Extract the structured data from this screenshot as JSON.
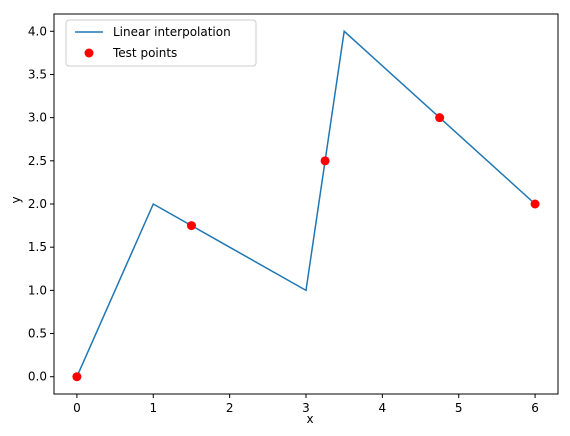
{
  "chart_data": {
    "type": "line",
    "title": "",
    "xlabel": "x",
    "ylabel": "y",
    "xlim": [
      -0.3,
      6.3
    ],
    "ylim": [
      -0.2,
      4.2
    ],
    "xticks": [
      0,
      1,
      2,
      3,
      4,
      5,
      6
    ],
    "yticks": [
      0.0,
      0.5,
      1.0,
      1.5,
      2.0,
      2.5,
      3.0,
      3.5,
      4.0
    ],
    "xtick_labels": [
      "0",
      "1",
      "2",
      "3",
      "4",
      "5",
      "6"
    ],
    "ytick_labels": [
      "0.0",
      "0.5",
      "1.0",
      "1.5",
      "2.0",
      "2.5",
      "3.0",
      "3.5",
      "4.0"
    ],
    "grid": false,
    "legend_position": "top-left",
    "series": [
      {
        "name": "Linear interpolation",
        "kind": "line",
        "color": "#1f77b4",
        "x": [
          0,
          1,
          2,
          3,
          3.5,
          6
        ],
        "y": [
          0,
          2,
          1.5,
          1,
          4,
          2
        ]
      },
      {
        "name": "Test points",
        "kind": "scatter",
        "color": "#ff0000",
        "x": [
          0,
          1.5,
          3.25,
          4.75,
          6
        ],
        "y": [
          0,
          1.75,
          2.5,
          3.0,
          2.0
        ]
      }
    ]
  }
}
